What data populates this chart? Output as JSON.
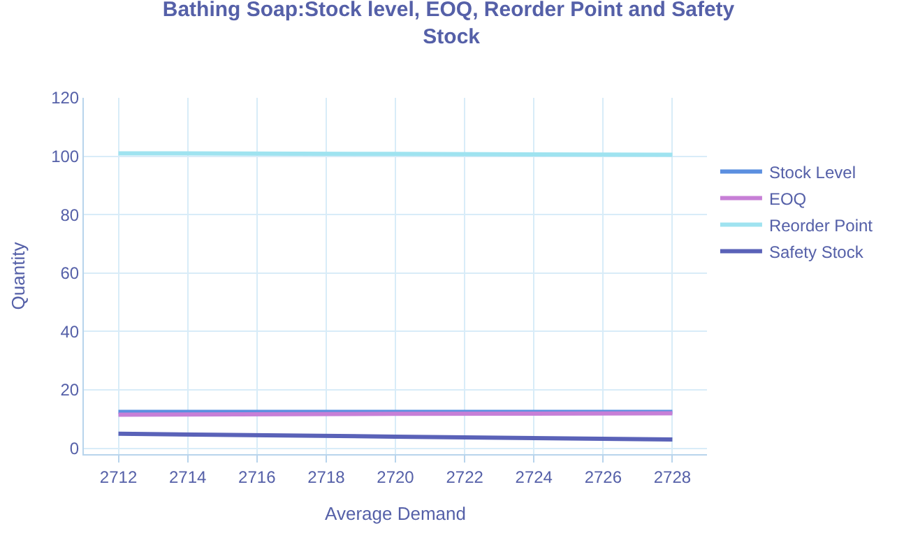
{
  "chart_data": {
    "type": "line",
    "title": "Bathing Soap:Stock level, EOQ, Reorder Point and Safety Stock",
    "xlabel": "Average Demand",
    "ylabel": "Quantity",
    "x": [
      2712,
      2720,
      2728
    ],
    "series": [
      {
        "name": "Stock Level",
        "color": "#5b8fe0",
        "values": [
          12.5,
          12.5,
          12.5
        ]
      },
      {
        "name": "EOQ",
        "color": "#c77fd6",
        "values": [
          11.5,
          11.8,
          12
        ]
      },
      {
        "name": "Reorder Point",
        "color": "#9fe3f0",
        "values": [
          101,
          100.8,
          100.5
        ]
      },
      {
        "name": "Safety Stock",
        "color": "#5a62b8",
        "values": [
          5,
          4,
          3
        ]
      }
    ],
    "xlim": [
      2711,
      2729
    ],
    "xticks": [
      2712,
      2714,
      2716,
      2718,
      2720,
      2722,
      2724,
      2726,
      2728
    ],
    "ylim": [
      -2,
      120
    ],
    "yticks": [
      0,
      20,
      40,
      60,
      80,
      100,
      120
    ],
    "grid": true,
    "legend": "right",
    "marker": "none",
    "line_style": "solid"
  }
}
